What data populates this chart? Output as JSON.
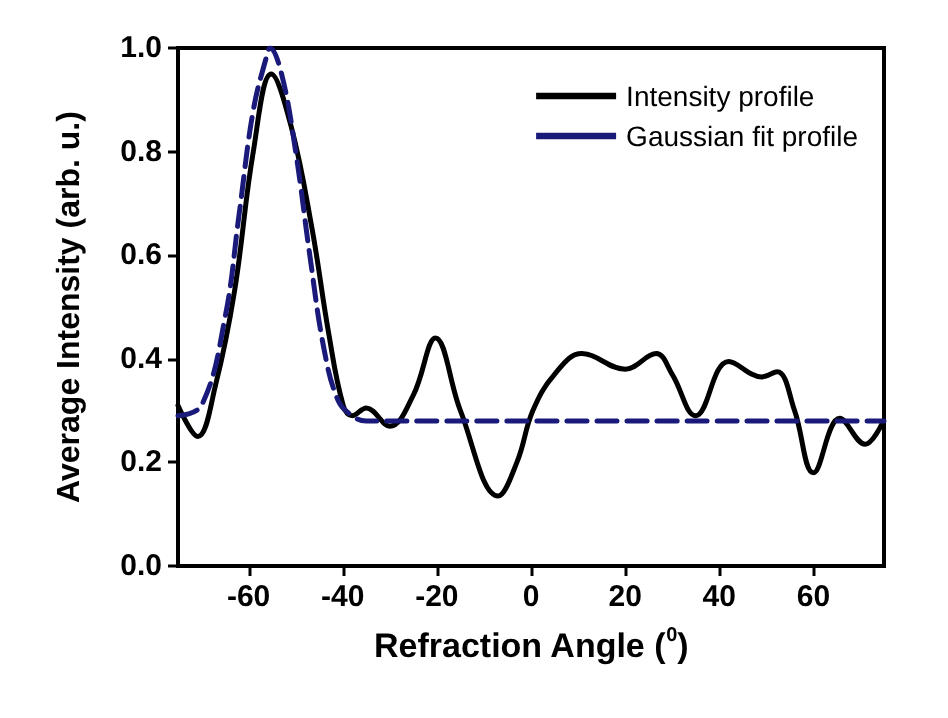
{
  "chart_data": {
    "type": "line",
    "xlabel": "Refraction Angle ($^{0}$)",
    "ylabel": "Average Intensity (arb. u.)",
    "xlim": [
      -75,
      75
    ],
    "xticks": [
      -60,
      -40,
      -20,
      0,
      20,
      40,
      60
    ],
    "ylim": [
      0,
      1
    ],
    "yticks": [
      {
        "value": 0,
        "label": "0.0"
      },
      0.2,
      0.4,
      0.6,
      0.8,
      {
        "value": 1,
        "label": "1.0"
      }
    ],
    "legend": "top right",
    "grid": false,
    "marker": "none",
    "series": [
      {
        "name": "Intensity profile",
        "color": "#000000",
        "line_style": "solid",
        "x": [
          -75,
          -70.8,
          -67,
          -63,
          -59,
          -55.2,
          -51,
          -46.5,
          -43,
          -39.9,
          -38,
          -35,
          -30,
          -25,
          -20.3,
          -15,
          -7,
          -3,
          0.4,
          5,
          10.8,
          20,
          26.6,
          30,
          35,
          42,
          49,
          52.3,
          56,
          60,
          65.6,
          71,
          74.6
        ],
        "values": [
          0.31,
          0.25,
          0.35,
          0.53,
          0.8,
          0.95,
          0.85,
          0.65,
          0.45,
          0.31,
          0.29,
          0.305,
          0.27,
          0.33,
          0.44,
          0.3,
          0.135,
          0.2,
          0.3,
          0.37,
          0.41,
          0.38,
          0.41,
          0.37,
          0.29,
          0.395,
          0.365,
          0.375,
          0.3,
          0.18,
          0.285,
          0.235,
          0.275
        ]
      },
      {
        "name": "Gaussian fit profile",
        "color": "#1a1a7a",
        "line_style": "dashed",
        "x": [
          -75,
          -70,
          -65,
          -62,
          -59,
          -56,
          -55.5,
          -53,
          -50,
          -47,
          -44,
          -41,
          -38,
          -35,
          75
        ],
        "values": [
          0.29,
          0.31,
          0.48,
          0.68,
          0.88,
          0.99,
          1.0,
          0.95,
          0.8,
          0.6,
          0.42,
          0.32,
          0.29,
          0.28,
          0.28
        ]
      }
    ]
  }
}
